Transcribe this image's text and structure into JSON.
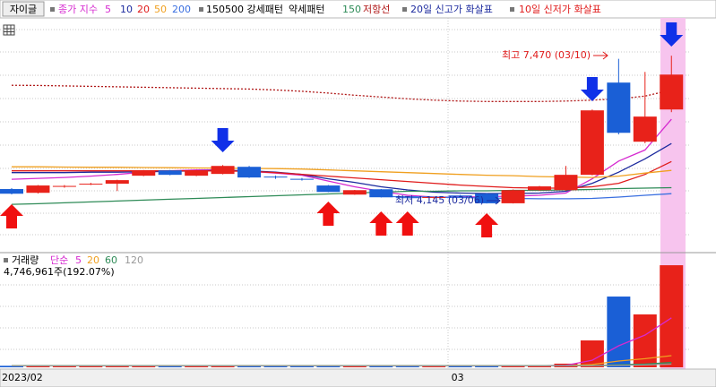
{
  "chart_data": [
    {
      "type": "candlestick",
      "title": "자이글",
      "legend_label": "종가 지수",
      "categories": [
        "2023/02",
        null,
        null,
        null,
        null,
        null,
        null,
        null,
        null,
        null,
        null,
        null,
        null,
        null,
        null,
        null,
        null,
        "03",
        null,
        null,
        null,
        null,
        null,
        null,
        null,
        null
      ],
      "open": [
        4470,
        4385,
        4520,
        4580,
        4590,
        4770,
        4890,
        4770,
        4810,
        4970,
        4750,
        4700,
        4550,
        4345,
        4465,
        4285,
        4270,
        4325,
        4365,
        4150,
        4445,
        4445,
        4790,
        6865,
        5535,
        6260
      ],
      "high": [
        4490,
        4560,
        4560,
        4610,
        4680,
        4900,
        4900,
        4900,
        5010,
        4990,
        4770,
        4720,
        4560,
        4450,
        4470,
        4300,
        4300,
        4340,
        4380,
        4460,
        4540,
        4990,
        6260,
        7400,
        7105,
        7470
      ],
      "low": [
        4350,
        4370,
        4500,
        4560,
        4425,
        4760,
        4780,
        4760,
        4800,
        4720,
        4700,
        4660,
        4400,
        4340,
        4280,
        4250,
        4240,
        4280,
        4145,
        4145,
        4430,
        4430,
        4780,
        5700,
        5500,
        6200
      ],
      "close": [
        4365,
        4550,
        4540,
        4590,
        4670,
        4890,
        4790,
        4890,
        4990,
        4730,
        4740,
        4680,
        4405,
        4445,
        4285,
        4270,
        4290,
        4300,
        4150,
        4445,
        4530,
        4790,
        6240,
        5735,
        6100,
        7045
      ],
      "up_color": "#e8221a",
      "down_color": "#1a5fd6",
      "ylim": [
        3080,
        8320
      ],
      "series": [
        {
          "name": "5",
          "color": "#d62ad0",
          "values": [
            4690,
            4710,
            4730,
            4760,
            4800,
            4850,
            4880,
            4900,
            4900,
            4870,
            4830,
            4780,
            4650,
            4520,
            4420,
            4330,
            4290,
            4290,
            4300,
            4310,
            4330,
            4380,
            4700,
            5100,
            5350,
            6040
          ]
        },
        {
          "name": "10",
          "color": "#1c2a9e",
          "values": [
            4840,
            4840,
            4840,
            4850,
            4850,
            4860,
            4870,
            4880,
            4890,
            4880,
            4850,
            4800,
            4700,
            4620,
            4520,
            4450,
            4400,
            4380,
            4370,
            4370,
            4380,
            4420,
            4600,
            4850,
            5150,
            5495
          ]
        },
        {
          "name": "20",
          "color": "#e01b1b",
          "values": [
            4880,
            4880,
            4880,
            4880,
            4880,
            4880,
            4880,
            4880,
            4875,
            4870,
            4840,
            4800,
            4760,
            4720,
            4680,
            4640,
            4600,
            4560,
            4530,
            4500,
            4490,
            4490,
            4520,
            4600,
            4800,
            5090
          ]
        },
        {
          "name": "50",
          "color": "#f0a020",
          "values": [
            4970,
            4970,
            4965,
            4960,
            4960,
            4955,
            4950,
            4945,
            4940,
            4935,
            4930,
            4920,
            4900,
            4880,
            4860,
            4840,
            4820,
            4800,
            4780,
            4770,
            4750,
            4740,
            4730,
            4760,
            4830,
            4890
          ]
        },
        {
          "name": "200",
          "color": "#3a6fe0",
          "values": [
            null,
            null,
            null,
            null,
            null,
            null,
            null,
            null,
            null,
            null,
            null,
            null,
            null,
            null,
            4300,
            4300,
            4290,
            4280,
            4270,
            4260,
            4250,
            4250,
            4260,
            4290,
            4330,
            4365
          ]
        },
        {
          "name": "150",
          "color": "#2e8b57",
          "values": [
            4125,
            4140,
            4160,
            4180,
            4200,
            4220,
            4240,
            4260,
            4280,
            4300,
            4320,
            4340,
            4360,
            4380,
            4400,
            4420,
            4420,
            4430,
            4430,
            4440,
            4440,
            4450,
            4460,
            4480,
            4490,
            4500
          ]
        },
        {
          "name": "저항선",
          "color": "#b01818",
          "dashed": true,
          "values": [
            6805,
            6800,
            6790,
            6780,
            6770,
            6760,
            6750,
            6740,
            6730,
            6720,
            6700,
            6670,
            6630,
            6580,
            6540,
            6500,
            6470,
            6450,
            6440,
            6440,
            6440,
            6450,
            6470,
            6500,
            6560,
            6700
          ]
        }
      ],
      "pattern_labels": [
        "150500 강세패턴",
        "약세패턴"
      ],
      "arrow_labels": [
        {
          "text": "20일 신고가 화살표",
          "color": "#1c2a9e"
        },
        {
          "text": "10일 신저가 화살표",
          "color": "#e01b1b"
        }
      ],
      "annotations": [
        {
          "text": "최고 7,470 (03/10)",
          "color": "#e01b1b"
        },
        {
          "text": "최저 4,145 (03/06)",
          "color": "#1c2a9e"
        }
      ]
    },
    {
      "type": "bar",
      "title": "거래량",
      "legend_label": "단순",
      "values": [
        70000,
        60000,
        50000,
        50000,
        80000,
        70000,
        60000,
        60000,
        80000,
        70000,
        50000,
        50000,
        60000,
        50000,
        60000,
        40000,
        40000,
        50000,
        80000,
        60000,
        60000,
        170000,
        1250000,
        3290000,
        2460000,
        4746961
      ],
      "value_labels": [
        null,
        null,
        null,
        null,
        null,
        null,
        null,
        null,
        null,
        null,
        null,
        null,
        null,
        null,
        null,
        null,
        null,
        null,
        null,
        null,
        null,
        null,
        null,
        null,
        null,
        "4,746,961주(192.07%)"
      ],
      "ylim": [
        0,
        5000000
      ],
      "series": [
        {
          "name": "5",
          "color": "#d62ad0",
          "values": [
            70000,
            70000,
            70000,
            70000,
            70000,
            70000,
            70000,
            70000,
            70000,
            70000,
            70000,
            70000,
            70000,
            70000,
            70000,
            70000,
            70000,
            70000,
            70000,
            70000,
            70000,
            90000,
            330000,
            1000000,
            1500000,
            2300000
          ]
        },
        {
          "name": "20",
          "color": "#f0a020",
          "values": [
            70000,
            70000,
            70000,
            70000,
            70000,
            70000,
            70000,
            70000,
            70000,
            70000,
            70000,
            70000,
            70000,
            70000,
            70000,
            70000,
            70000,
            70000,
            70000,
            70000,
            70000,
            75000,
            130000,
            290000,
            400000,
            540000
          ]
        },
        {
          "name": "60",
          "color": "#2e8b57",
          "values": [
            70000,
            70000,
            70000,
            70000,
            70000,
            70000,
            70000,
            70000,
            70000,
            70000,
            70000,
            70000,
            70000,
            70000,
            70000,
            70000,
            70000,
            70000,
            70000,
            70000,
            70000,
            70000,
            80000,
            120000,
            150000,
            220000
          ]
        },
        {
          "name": "120",
          "color": "#999999",
          "values": [
            65000,
            65000,
            65000,
            65000,
            65000,
            65000,
            65000,
            65000,
            65000,
            65000,
            65000,
            65000,
            65000,
            65000,
            65000,
            65000,
            65000,
            65000,
            65000,
            65000,
            65000,
            65000,
            70000,
            90000,
            110000,
            150000
          ]
        }
      ]
    }
  ]
}
